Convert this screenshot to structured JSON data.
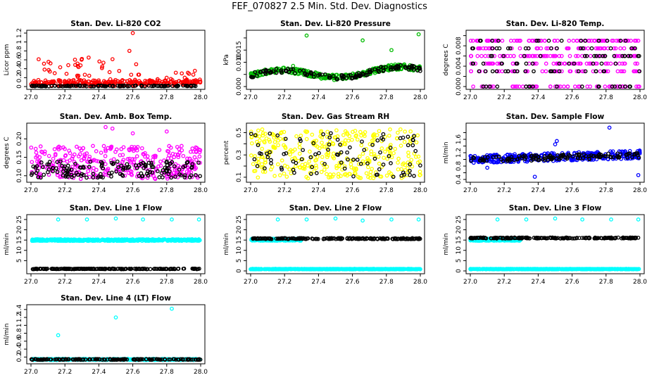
{
  "page": {
    "title": "FEF_070827  2.5 Min. Std. Dev. Diagnostics"
  },
  "chart_data": [
    {
      "id": "co2",
      "type": "scatter",
      "title": "Stan. Dev. Li-820 CO2",
      "ylabel": "Licor ppm",
      "xlim": [
        27.0,
        28.0
      ],
      "ylim": [
        0,
        1.2
      ],
      "xticks": [
        "27.0",
        "27.2",
        "27.4",
        "27.6",
        "27.8",
        "28.0"
      ],
      "yticks": [
        0,
        0.2,
        0.4,
        0.6,
        0.8,
        1.0,
        1.2
      ],
      "series": [
        {
          "color": "#ff0000",
          "pattern": "noisy",
          "base": 0.05,
          "spread": 0.07,
          "n": 320,
          "tail": 0.6,
          "tailFreq": 0.25,
          "tailDecay": 0.55,
          "outliers": [
            [
              27.08,
              0.38
            ],
            [
              27.14,
              0.3
            ],
            [
              27.22,
              0.48
            ],
            [
              27.3,
              0.62
            ],
            [
              27.34,
              0.65
            ],
            [
              27.42,
              0.45
            ],
            [
              27.52,
              0.35
            ],
            [
              27.58,
              0.8
            ],
            [
              27.6,
              1.2
            ],
            [
              27.62,
              0.5
            ]
          ]
        },
        {
          "color": "#000000",
          "pattern": "noisy",
          "base": 0.01,
          "spread": 0.01,
          "n": 120
        }
      ]
    },
    {
      "id": "pres",
      "type": "scatter",
      "title": "Stan. Dev. Li-820 Pressure",
      "ylabel": "kPa",
      "xlim": [
        27.0,
        28.0
      ],
      "ylim": [
        0,
        0.022
      ],
      "xticks": [
        "27.0",
        "27.2",
        "27.4",
        "27.6",
        "27.8",
        "28.0"
      ],
      "yticks": [
        0.0,
        0.005,
        0.01,
        0.015,
        0.02
      ],
      "ytickLabels": [
        "0.000",
        "",
        "0.010",
        "0.015",
        ""
      ],
      "series": [
        {
          "color": "#00bb00",
          "pattern": "wave",
          "base": 0.0045,
          "amp": 0.0018,
          "spread": 0.0022,
          "n": 340,
          "outliers": [
            [
              27.33,
              0.021
            ],
            [
              27.66,
              0.019
            ],
            [
              27.83,
              0.015
            ],
            [
              27.99,
              0.0215
            ],
            [
              27.25,
              0.0085
            ]
          ]
        },
        {
          "color": "#000000",
          "pattern": "wave",
          "base": 0.0045,
          "amp": 0.0018,
          "spread": 0.002,
          "n": 130
        }
      ]
    },
    {
      "id": "temp",
      "type": "scatter",
      "title": "Stan. Dev. Li-820 Temp.",
      "ylabel": "degrees C",
      "xlim": [
        27.0,
        28.0
      ],
      "ylim": [
        0,
        0.0105
      ],
      "xticks": [
        "27.0",
        "27.2",
        "27.4",
        "27.6",
        "27.8",
        "28.0"
      ],
      "yticks": [
        0,
        0.002,
        0.004,
        0.006,
        0.008,
        0.01
      ],
      "ytickLabels": [
        "0.000",
        "",
        "0.004",
        "",
        "0.008",
        ""
      ],
      "series": [
        {
          "color": "#ff00ff",
          "pattern": "levels",
          "levels": [
            0,
            0.003,
            0.0045,
            0.006,
            0.0075,
            0.009
          ],
          "n": 340
        },
        {
          "color": "#000000",
          "pattern": "levels",
          "levels": [
            0,
            0.003,
            0.0045,
            0.006,
            0.0075,
            0.009
          ],
          "n": 110
        }
      ]
    },
    {
      "id": "amb",
      "type": "scatter",
      "title": "Stan. Dev. Amb. Box Temp.",
      "ylabel": "degrees C",
      "xlim": [
        27.0,
        28.0
      ],
      "ylim": [
        0.09,
        0.235
      ],
      "xticks": [
        "27.0",
        "27.2",
        "27.4",
        "27.6",
        "27.8",
        "28.0"
      ],
      "yticks": [
        0.1,
        0.15,
        0.2
      ],
      "ytickLabels": [
        "0.10",
        "0.15",
        "0.20"
      ],
      "series": [
        {
          "color": "#ff00ff",
          "pattern": "noisy",
          "base": 0.118,
          "spread": 0.045,
          "n": 330,
          "outliers": [
            [
              27.44,
              0.232
            ],
            [
              27.48,
              0.228
            ],
            [
              27.6,
              0.215
            ],
            [
              27.8,
              0.22
            ]
          ]
        },
        {
          "color": "#000000",
          "pattern": "noisy",
          "base": 0.108,
          "spread": 0.022,
          "n": 150
        }
      ]
    },
    {
      "id": "rh",
      "type": "scatter",
      "title": "Stan. Dev. Gas Stream RH",
      "ylabel": "percent",
      "xlim": [
        27.0,
        28.0
      ],
      "ylim": [
        0.08,
        0.56
      ],
      "xticks": [
        "27.0",
        "27.2",
        "27.4",
        "27.6",
        "27.8",
        "28.0"
      ],
      "yticks": [
        0.1,
        0.2,
        0.3,
        0.4,
        0.5
      ],
      "ytickLabels": [
        "0.1",
        "",
        "0.3",
        "",
        "0.5"
      ],
      "series": [
        {
          "color": "#ffff00",
          "pattern": "uniform",
          "lo": 0.09,
          "hi": 0.53,
          "n": 330
        },
        {
          "color": "#000000",
          "pattern": "uniform",
          "lo": 0.1,
          "hi": 0.5,
          "n": 90
        }
      ]
    },
    {
      "id": "flow",
      "type": "scatter",
      "title": "Stan. Dev. Sample Flow",
      "ylabel": "ml/min",
      "xlim": [
        27.0,
        28.0
      ],
      "ylim": [
        0.4,
        2.0
      ],
      "xticks": [
        "27.0",
        "27.2",
        "27.4",
        "27.6",
        "27.8",
        "28.0"
      ],
      "yticks": [
        0.4,
        0.6,
        0.8,
        1.0,
        1.2,
        1.4,
        1.6,
        1.8
      ],
      "ytickLabels": [
        "0.4",
        "",
        "0.8",
        "",
        "1.2",
        "",
        "1.6",
        ""
      ],
      "series": [
        {
          "color": "#0000ff",
          "pattern": "noisy2",
          "base": 1.0,
          "slope": 0.15,
          "spread": 0.12,
          "n": 340,
          "outliers": [
            [
              27.02,
              0.9
            ],
            [
              27.1,
              0.75
            ],
            [
              27.38,
              0.48
            ],
            [
              27.5,
              1.45
            ],
            [
              27.51,
              1.55
            ],
            [
              27.82,
              1.95
            ],
            [
              27.99,
              0.53
            ]
          ]
        },
        {
          "color": "#000000",
          "pattern": "noisy2",
          "base": 1.0,
          "slope": 0.12,
          "spread": 0.08,
          "n": 130
        }
      ]
    },
    {
      "id": "l1",
      "type": "scatter",
      "title": "Stan. Dev. Line 1 Flow",
      "ylabel": "ml/min",
      "xlim": [
        27.0,
        28.0
      ],
      "ylim": [
        0,
        26
      ],
      "xticks": [
        "27.0",
        "27.2",
        "27.4",
        "27.6",
        "27.8",
        "28.0"
      ],
      "yticks": [
        5,
        10,
        15,
        20,
        25
      ],
      "series": [
        {
          "color": "#00ffff",
          "pattern": "band",
          "base": 15.0,
          "spread": 0.8,
          "n": 460,
          "outliers": [
            [
              27.16,
              25
            ],
            [
              27.33,
              25
            ],
            [
              27.5,
              25.5
            ],
            [
              27.66,
              25
            ],
            [
              27.83,
              25
            ],
            [
              27.99,
              25
            ]
          ]
        },
        {
          "color": "#000000",
          "pattern": "band",
          "base": 1.0,
          "spread": 0.3,
          "n": 200
        }
      ]
    },
    {
      "id": "l2",
      "type": "scatter",
      "title": "Stan. Dev. Line 2 Flow",
      "ylabel": "ml/min",
      "xlim": [
        27.0,
        28.0
      ],
      "ylim": [
        0,
        26
      ],
      "xticks": [
        "27.0",
        "27.2",
        "27.4",
        "27.6",
        "27.8",
        "28.0"
      ],
      "yticks": [
        0,
        5,
        10,
        15,
        20,
        25
      ],
      "series": [
        {
          "color": "#00ffff",
          "pattern": "band",
          "base": 15.2,
          "spread": 1.0,
          "n": 300,
          "xmax": 27.3
        },
        {
          "color": "#00ffff",
          "pattern": "band",
          "base": 0.9,
          "spread": 0.2,
          "n": 460,
          "outliers": [
            [
              27.16,
              25
            ],
            [
              27.33,
              25
            ],
            [
              27.5,
              25.5
            ],
            [
              27.66,
              24.5
            ],
            [
              27.83,
              25
            ],
            [
              27.99,
              25
            ]
          ]
        },
        {
          "color": "#000000",
          "pattern": "band",
          "base": 15.7,
          "spread": 0.5,
          "n": 200
        }
      ]
    },
    {
      "id": "l3",
      "type": "scatter",
      "title": "Stan. Dev. Line 3 Flow",
      "ylabel": "ml/min",
      "xlim": [
        27.0,
        28.0
      ],
      "ylim": [
        0,
        26
      ],
      "xticks": [
        "27.0",
        "27.2",
        "27.4",
        "27.6",
        "27.8",
        "28.0"
      ],
      "yticks": [
        0,
        5,
        10,
        15,
        20,
        25
      ],
      "series": [
        {
          "color": "#00ffff",
          "pattern": "band",
          "base": 15.2,
          "spread": 1.0,
          "n": 300,
          "xmax": 27.3
        },
        {
          "color": "#00ffff",
          "pattern": "band",
          "base": 0.9,
          "spread": 0.2,
          "n": 460,
          "outliers": [
            [
              27.16,
              25
            ],
            [
              27.33,
              25
            ],
            [
              27.5,
              25.5
            ],
            [
              27.66,
              25
            ],
            [
              27.83,
              25
            ],
            [
              27.99,
              25
            ]
          ]
        },
        {
          "color": "#000000",
          "pattern": "band",
          "base": 16.0,
          "spread": 0.5,
          "n": 200
        }
      ]
    },
    {
      "id": "l4",
      "type": "scatter",
      "title": "Stan. Dev. Line 4 (LT) Flow",
      "ylabel": "ml/min",
      "xlim": [
        27.0,
        28.0
      ],
      "ylim": [
        0.1,
        1.45
      ],
      "xticks": [
        "27.0",
        "27.2",
        "27.4",
        "27.6",
        "27.8",
        "28.0"
      ],
      "yticks": [
        0.2,
        0.4,
        0.6,
        0.8,
        1.0,
        1.2,
        1.4
      ],
      "series": [
        {
          "color": "#00ffff",
          "pattern": "band",
          "base": 0.14,
          "spread": 0.03,
          "n": 420,
          "outliers": [
            [
              27.16,
              0.75
            ],
            [
              27.5,
              1.2
            ],
            [
              27.83,
              1.42
            ]
          ]
        },
        {
          "color": "#000000",
          "pattern": "band",
          "base": 0.14,
          "spread": 0.02,
          "n": 170
        }
      ]
    }
  ]
}
